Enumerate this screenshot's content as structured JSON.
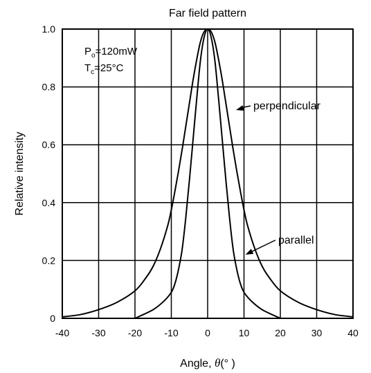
{
  "chart_data": {
    "type": "line",
    "title": "Far field pattern",
    "xlabel_text": "Angle, ",
    "xlabel_symbol": "θ",
    "xlabel_unit": "(°  )",
    "ylabel": "Relative intensity",
    "xlim": [
      -40,
      40
    ],
    "ylim": [
      0,
      1.0
    ],
    "grid": true,
    "x_ticks": [
      "-40",
      "-30",
      "-20",
      "-10",
      "0",
      "10",
      "20",
      "30",
      "40"
    ],
    "y_ticks": [
      "0",
      "0.2",
      "0.4",
      "0.6",
      "0.8",
      "1.0"
    ],
    "conditions": {
      "po_main": "P",
      "po_sub": "o",
      "po_value": "=120mW",
      "tc_main": "T",
      "tc_sub": "c",
      "tc_value": "=25°C"
    },
    "series": [
      {
        "name": "perpendicular",
        "color": "#000000",
        "x": [
          -40,
          -35,
          -30,
          -25,
          -20,
          -17,
          -15,
          -13,
          -11,
          -10,
          -9,
          -8,
          -7,
          -6,
          -5,
          -4,
          -3,
          -2,
          -1,
          0,
          1,
          2,
          3,
          4,
          5,
          6,
          7,
          8,
          9,
          10,
          11,
          13,
          15,
          17,
          20,
          25,
          30,
          35,
          40
        ],
        "y": [
          0.005,
          0.013,
          0.03,
          0.055,
          0.095,
          0.14,
          0.18,
          0.24,
          0.32,
          0.375,
          0.44,
          0.51,
          0.585,
          0.665,
          0.745,
          0.825,
          0.895,
          0.955,
          0.99,
          1.0,
          0.99,
          0.955,
          0.895,
          0.825,
          0.745,
          0.665,
          0.585,
          0.51,
          0.44,
          0.375,
          0.32,
          0.24,
          0.18,
          0.14,
          0.095,
          0.055,
          0.03,
          0.013,
          0.005
        ]
      },
      {
        "name": "parallel",
        "color": "#000000",
        "x": [
          -20,
          -15,
          -12,
          -10,
          -9,
          -8,
          -7,
          -6,
          -5,
          -4,
          -3,
          -2,
          -1,
          0,
          1,
          2,
          3,
          4,
          5,
          6,
          7,
          8,
          9,
          10,
          12,
          15,
          20
        ],
        "y": [
          0.0,
          0.03,
          0.06,
          0.09,
          0.12,
          0.17,
          0.24,
          0.35,
          0.48,
          0.62,
          0.76,
          0.89,
          0.97,
          1.0,
          0.97,
          0.89,
          0.76,
          0.62,
          0.48,
          0.35,
          0.24,
          0.17,
          0.12,
          0.09,
          0.06,
          0.03,
          0.0
        ]
      }
    ],
    "annotations": [
      {
        "text": "perpendicular",
        "points_to": "perpendicular",
        "target": [
          7.8,
          0.72
        ]
      },
      {
        "text": "parallel",
        "points_to": "parallel",
        "target": [
          10.4,
          0.22
        ]
      }
    ]
  }
}
